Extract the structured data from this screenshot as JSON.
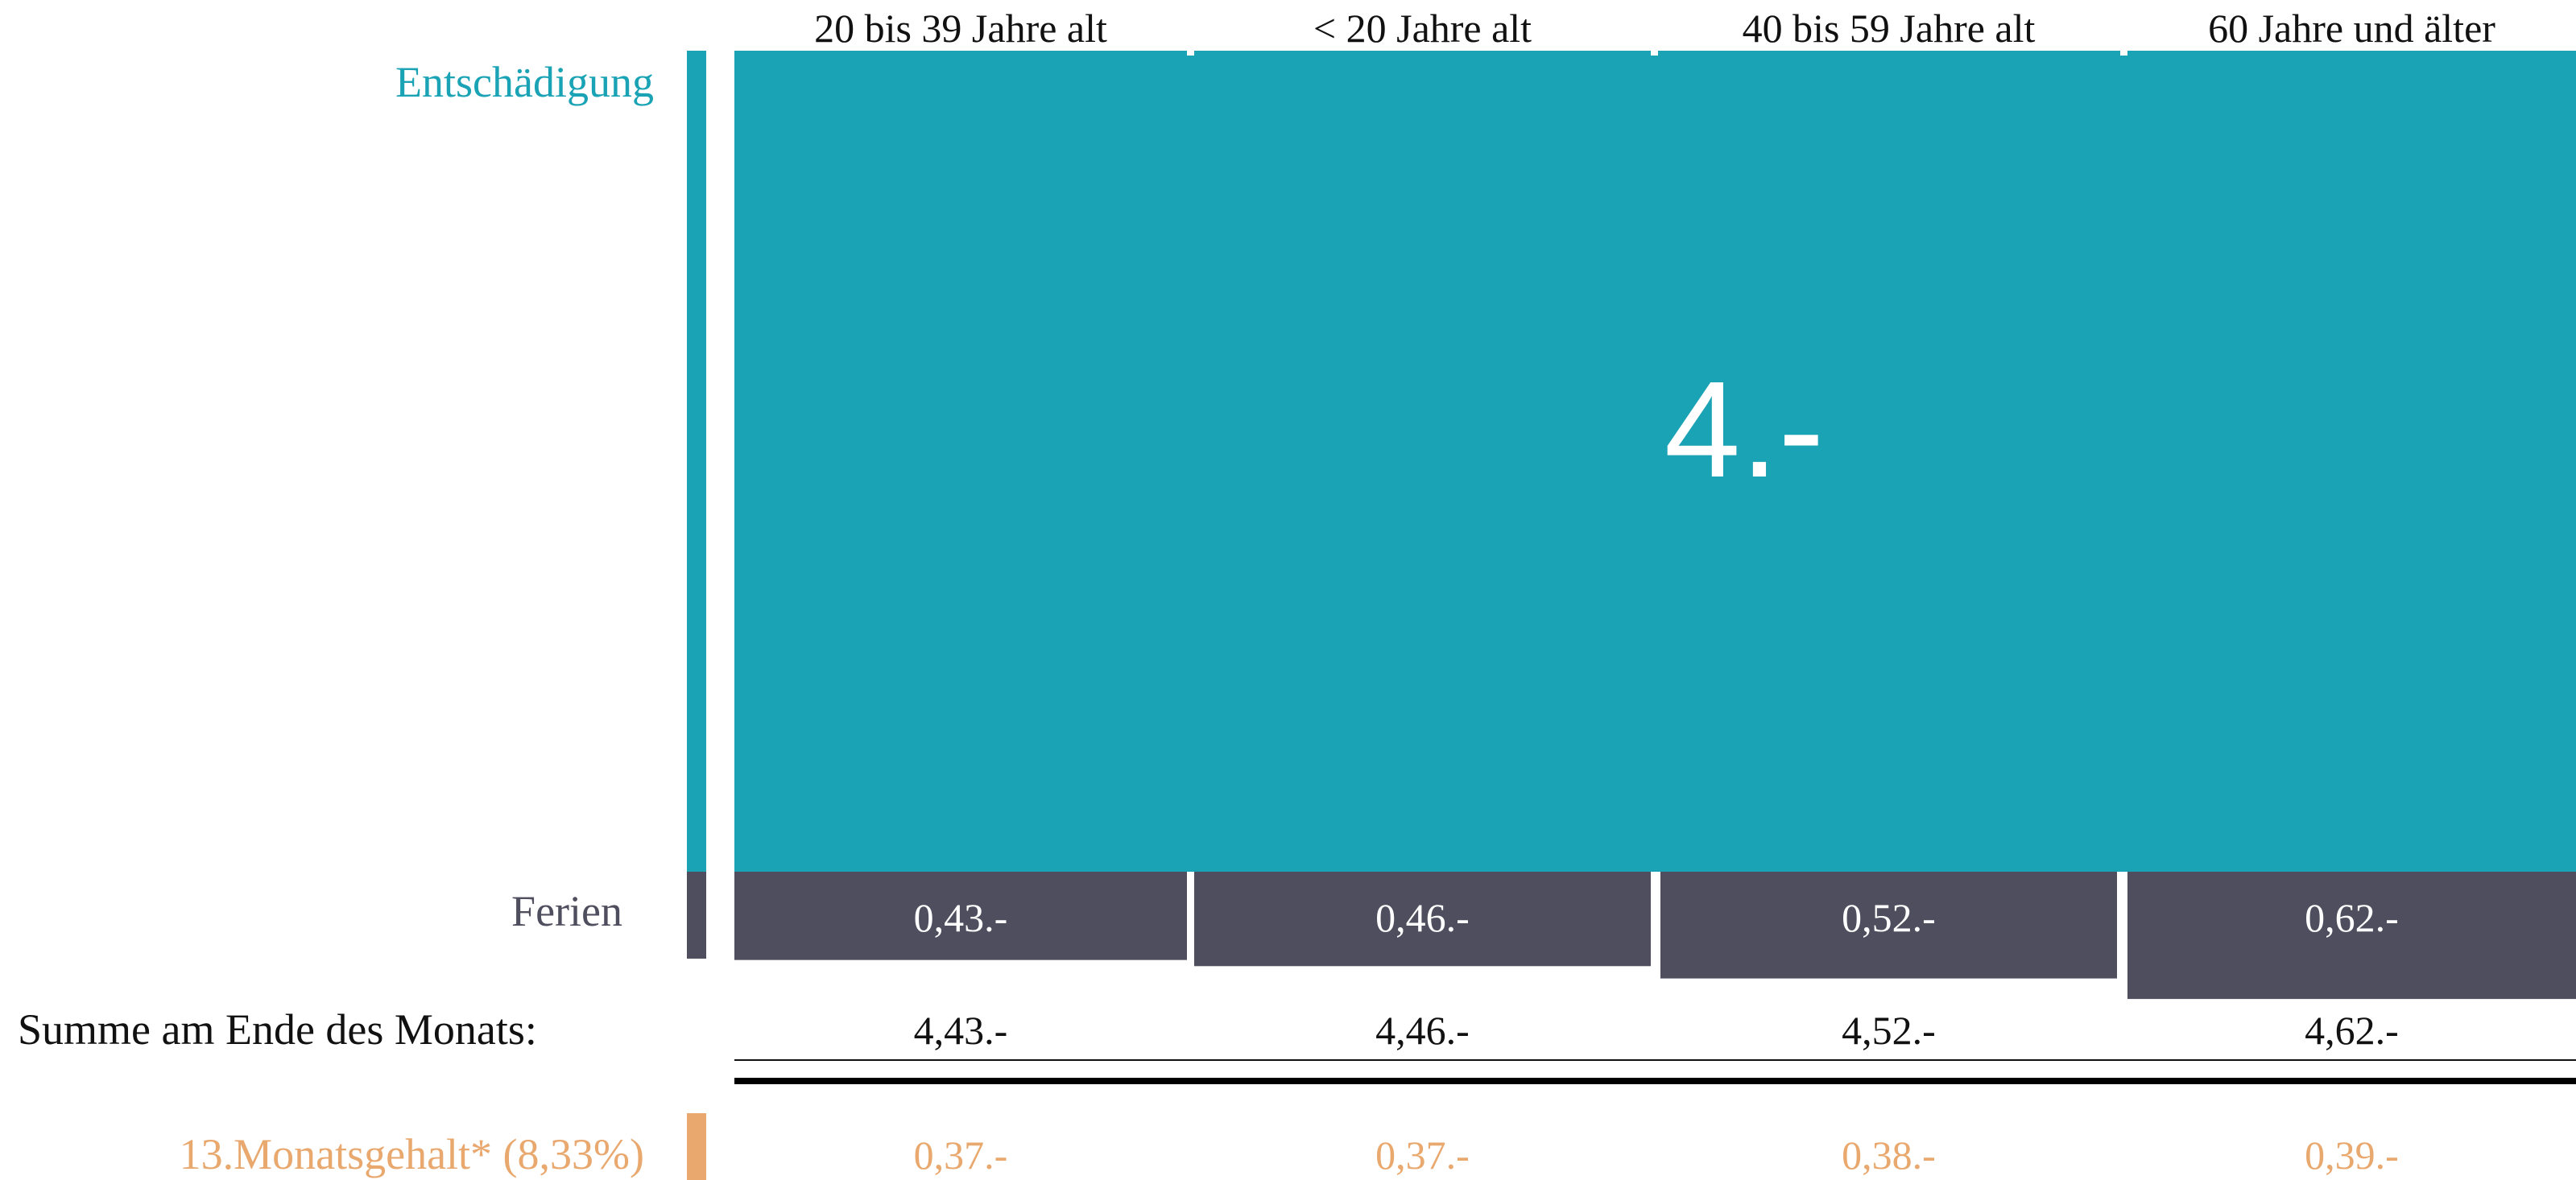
{
  "chart_data": {
    "type": "bar",
    "categories": [
      "20 bis 39 Jahre alt",
      "< 20 Jahre alt",
      "40 bis 59 Jahre alt",
      "60 Jahre und älter"
    ],
    "series": [
      {
        "name": "Entschädigung",
        "values": [
          4,
          4,
          4,
          4
        ],
        "labels": [
          "4.-"
        ]
      },
      {
        "name": "Ferien",
        "values": [
          0.43,
          0.46,
          0.52,
          0.62
        ],
        "labels": [
          "0,43.-",
          "0,46.-",
          "0,52.-",
          "0,62.-"
        ]
      }
    ],
    "sum_label": "Summe am Ende des Monats:",
    "sums": [
      "4,43.-",
      "4,46.-",
      "4,52.-",
      "4,62.-"
    ],
    "extra_row": {
      "label": "13.Monatsgehalt* (8,33%)",
      "values": [
        "0,37.-",
        "0,37.-",
        "0,38.-",
        "0,39.-"
      ]
    },
    "colors": {
      "entschaedigung": "#1aa2b5",
      "ferien": "#4f4e5e",
      "monatsgehalt": "#e8a86e",
      "text": "#111111"
    }
  }
}
